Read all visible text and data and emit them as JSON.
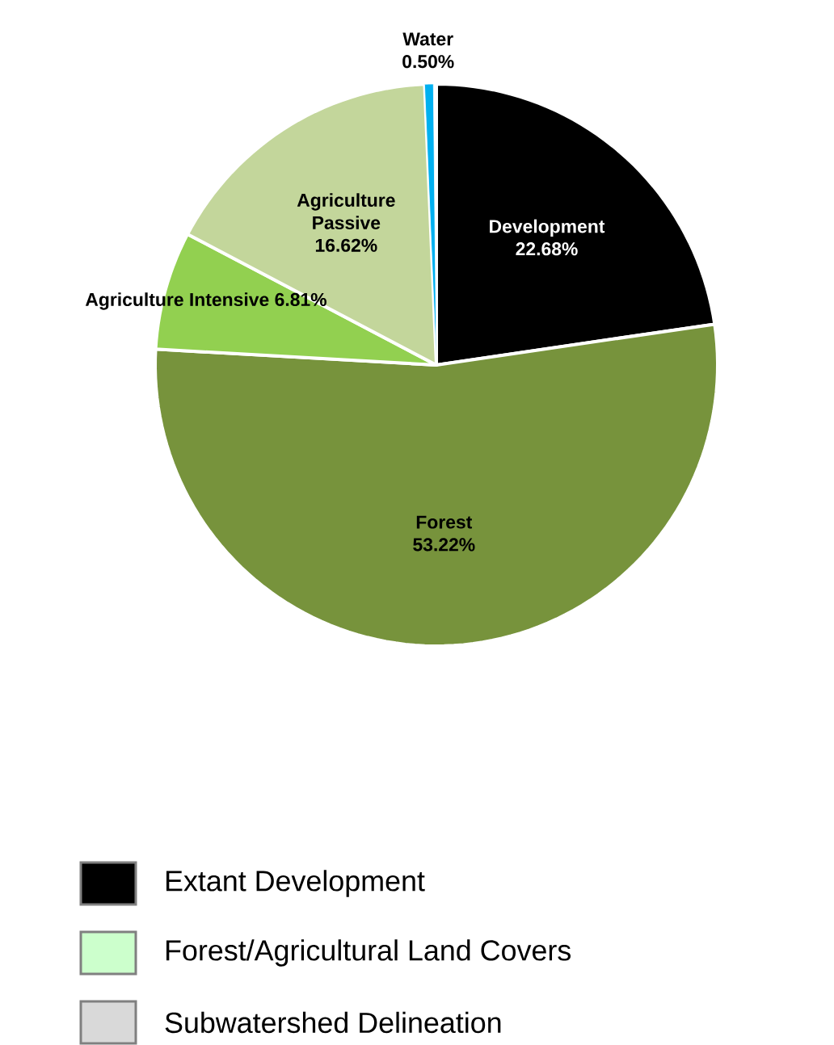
{
  "chart_data": {
    "type": "pie",
    "categories": [
      "Development",
      "Forest",
      "Agriculture Intensive",
      "Agriculture Passive",
      "Water"
    ],
    "values": [
      22.68,
      53.22,
      6.81,
      16.62,
      0.5
    ],
    "value_labels": [
      "22.68%",
      "53.22%",
      "6.81%",
      "16.62%",
      "0.50%"
    ],
    "colors": [
      "#000000",
      "#77933c",
      "#92d050",
      "#c3d69b",
      "#00b0f0"
    ],
    "annotations": [
      "Extant Development",
      "Forest/Agricultural Land Covers",
      "Subwatershed Delineation"
    ]
  }
}
